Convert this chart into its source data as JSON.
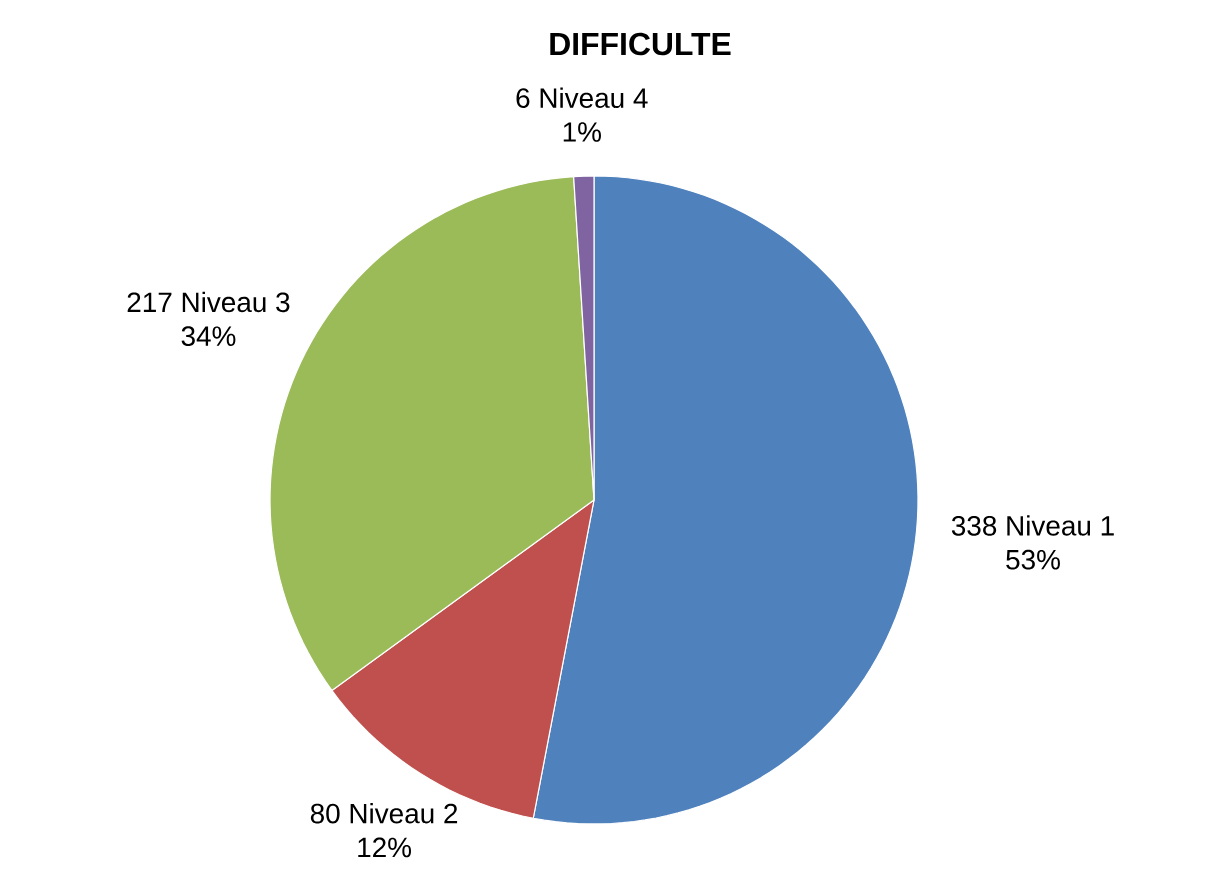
{
  "chart_data": {
    "type": "pie",
    "title": "DIFFICULTE",
    "categories": [
      "338 Niveau 1",
      "80 Niveau 2",
      "217 Niveau 3",
      "6 Niveau 4"
    ],
    "values": [
      53,
      12,
      34,
      1
    ],
    "value_labels": [
      "53%",
      "12%",
      "34%",
      "1%"
    ],
    "colors": [
      "#4f81bd",
      "#c0504d",
      "#9bbb59",
      "#8064a2"
    ],
    "data_labels": true
  }
}
